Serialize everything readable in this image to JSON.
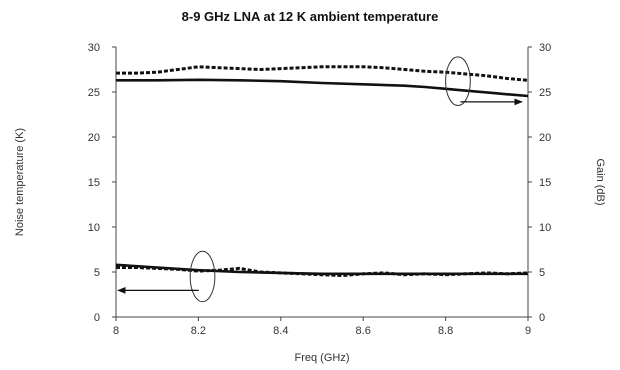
{
  "chart_data": {
    "type": "line",
    "title": "8-9 GHz LNA at 12 K ambient temperature",
    "xlabel": "Freq (GHz)",
    "ylabel": "Noise temperature (K)",
    "y2label": "Gain (dB)",
    "xlim": [
      8,
      9
    ],
    "ylim": [
      0,
      30
    ],
    "y2lim": [
      0,
      30
    ],
    "xticks": [
      "8",
      "8.2",
      "8.4",
      "8.6",
      "8.8",
      "9"
    ],
    "yticks": [
      "0",
      "5",
      "10",
      "15",
      "20",
      "25",
      "30"
    ],
    "y2ticks": [
      "0",
      "5",
      "10",
      "15",
      "20",
      "25",
      "30"
    ],
    "grid": false,
    "series": [
      {
        "style": "dashed",
        "axis": "right",
        "color": "#111111",
        "x": [
          8.0,
          8.05,
          8.1,
          8.15,
          8.2,
          8.25,
          8.3,
          8.35,
          8.4,
          8.45,
          8.5,
          8.55,
          8.6,
          8.65,
          8.7,
          8.75,
          8.8,
          8.85,
          8.9,
          8.95,
          9.0
        ],
        "y": [
          27.1,
          27.1,
          27.2,
          27.5,
          27.8,
          27.7,
          27.6,
          27.5,
          27.6,
          27.7,
          27.8,
          27.8,
          27.8,
          27.7,
          27.5,
          27.3,
          27.2,
          27.0,
          26.8,
          26.5,
          26.3
        ]
      },
      {
        "style": "solid",
        "axis": "right",
        "color": "#111111",
        "x": [
          8.0,
          8.1,
          8.2,
          8.3,
          8.4,
          8.5,
          8.6,
          8.7,
          8.75,
          8.8,
          8.85,
          8.9,
          8.95,
          9.0
        ],
        "y": [
          26.3,
          26.3,
          26.35,
          26.3,
          26.2,
          26.0,
          25.85,
          25.7,
          25.55,
          25.35,
          25.15,
          24.95,
          24.75,
          24.55
        ]
      },
      {
        "style": "dashed",
        "axis": "left",
        "color": "#111111",
        "x": [
          8.0,
          8.05,
          8.1,
          8.15,
          8.2,
          8.25,
          8.3,
          8.35,
          8.4,
          8.45,
          8.5,
          8.55,
          8.6,
          8.65,
          8.7,
          8.75,
          8.8,
          8.85,
          8.9,
          8.95,
          9.0
        ],
        "y": [
          5.5,
          5.5,
          5.4,
          5.3,
          5.1,
          5.2,
          5.4,
          5.0,
          4.9,
          4.8,
          4.7,
          4.6,
          4.8,
          4.9,
          4.7,
          4.8,
          4.7,
          4.8,
          4.9,
          4.8,
          4.9
        ]
      },
      {
        "style": "solid",
        "axis": "left",
        "color": "#111111",
        "x": [
          8.0,
          8.1,
          8.2,
          8.3,
          8.4,
          8.5,
          8.6,
          8.7,
          8.8,
          8.9,
          9.0
        ],
        "y": [
          5.8,
          5.5,
          5.2,
          5.0,
          4.9,
          4.8,
          4.8,
          4.8,
          4.8,
          4.8,
          4.8
        ]
      }
    ],
    "annotations": [
      {
        "type": "ellipse",
        "x": 8.21,
        "y": 4.5,
        "rx": 0.03,
        "ry": 2.8,
        "points_to": "left-axis"
      },
      {
        "type": "ellipse",
        "x": 8.83,
        "y": 26.2,
        "rx": 0.03,
        "ry": 2.7,
        "points_to": "right-axis"
      }
    ]
  }
}
